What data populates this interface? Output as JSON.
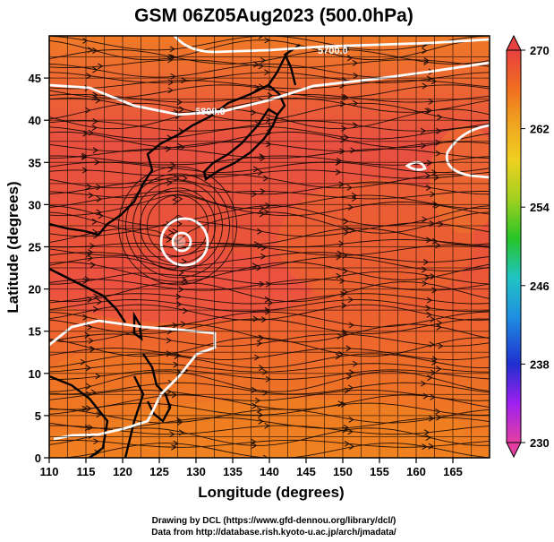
{
  "title": "GSM 06Z05Aug2023 (500.0hPa)",
  "xlabel": "Longitude (degrees)",
  "ylabel": "Latitude (degrees)",
  "x_ticks": [
    "110",
    "115",
    "120",
    "125",
    "130",
    "135",
    "140",
    "145",
    "150",
    "155",
    "160",
    "165"
  ],
  "y_ticks": [
    "0",
    "5",
    "10",
    "15",
    "20",
    "25",
    "30",
    "35",
    "40",
    "45"
  ],
  "colorbar": {
    "ticks": [
      "270",
      "262",
      "254",
      "246",
      "238",
      "230"
    ],
    "min": 230,
    "max": 270,
    "colors": [
      "#e43fa0",
      "#a020f0",
      "#1f2fcf",
      "#1f8fe0",
      "#20c4c4",
      "#28c428",
      "#a0d020",
      "#f0d020",
      "#f0a020",
      "#f07020",
      "#e84040"
    ]
  },
  "contours": {
    "label_a": "5700.0",
    "label_b": "5800.0"
  },
  "credits": {
    "line1": "Drawing by DCL (https://www.gfd-dennou.org/library/dcl/)",
    "line2": "Data from http://database.rish.kyoto-u.ac.jp/arch/jmadata/"
  },
  "map_data": {
    "lon_range": [
      110,
      170
    ],
    "lat_range": [
      0,
      50
    ],
    "field": "temperature (K)",
    "typhoon_center": {
      "lon": 127.5,
      "lat": 27.5
    }
  }
}
